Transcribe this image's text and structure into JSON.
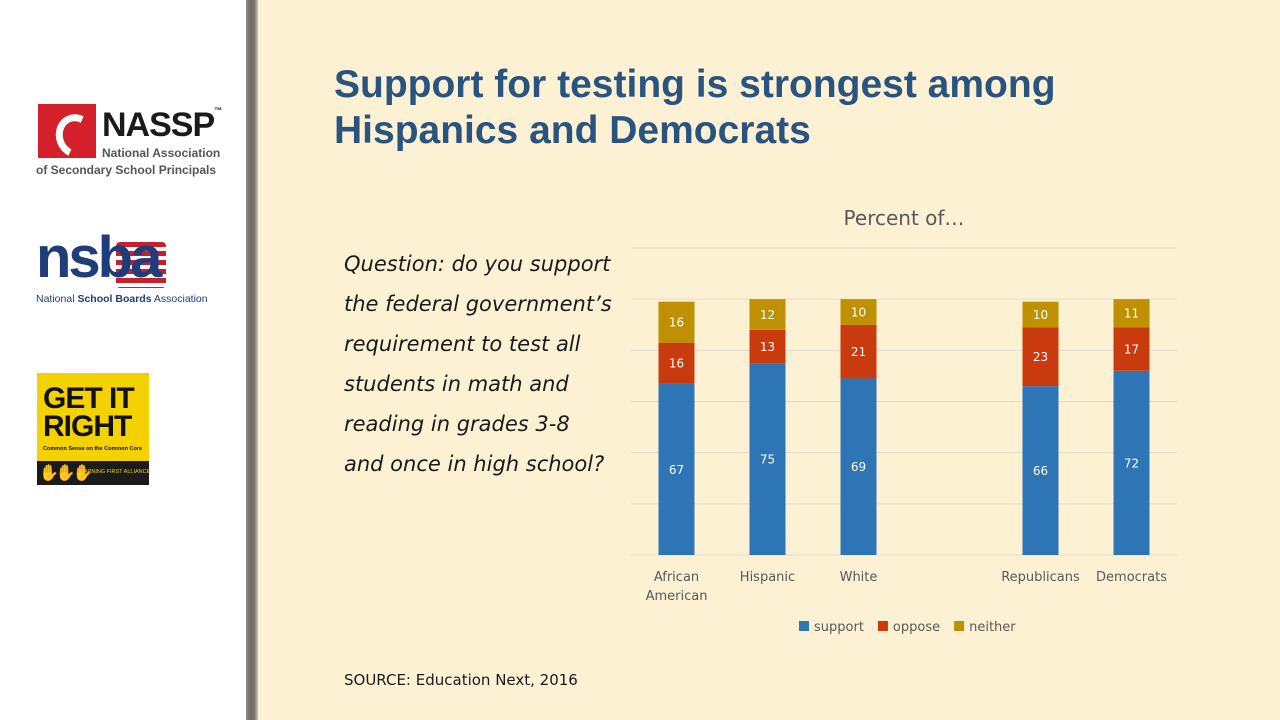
{
  "slide": {
    "title_line1": "Support for testing is strongest among",
    "title_line2": "Hispanics and Democrats",
    "question": "Question: do you support the federal government’s requirement to test all students in math and reading in grades 3-8 and once in high school?",
    "source": "SOURCE: Education Next, 2016"
  },
  "logos": {
    "nassp": {
      "name": "NASSP",
      "tm": "™",
      "line1": "National Association",
      "line2": "of Secondary School Principals"
    },
    "nsba": {
      "word": "nsba",
      "tagline_plain": "National ",
      "tagline_bold": "School Boards",
      "tagline_end": " Association"
    },
    "get_it_right": {
      "line1": "GET IT",
      "line2": "RIGHT",
      "subtitle": "Common Sense on the Common Core",
      "alliance": "LEARNING FIRST ALLIANCE"
    }
  },
  "colors": {
    "support": "#2e75b6",
    "oppose": "#c93b0e",
    "neither": "#bf9000",
    "title": "#2a5480",
    "grid": "#e3dccb",
    "label": "#595959"
  },
  "chart_data": {
    "type": "bar",
    "stacked": true,
    "title": "Percent of…",
    "categories": [
      [
        "African",
        "American"
      ],
      [
        "Hispanic"
      ],
      [
        "White"
      ],
      [
        ""
      ],
      [
        "Republicans"
      ],
      [
        "Democrats"
      ]
    ],
    "series": [
      {
        "name": "support",
        "values": [
          67,
          75,
          69,
          null,
          66,
          72
        ]
      },
      {
        "name": "oppose",
        "values": [
          16,
          13,
          21,
          null,
          23,
          17
        ]
      },
      {
        "name": "neither",
        "values": [
          16,
          12,
          10,
          null,
          10,
          11
        ]
      }
    ],
    "ylim": [
      0,
      120
    ],
    "gridlines": [
      0,
      20,
      40,
      60,
      80,
      100,
      120
    ],
    "legend": "bottom",
    "data_labels": true
  }
}
